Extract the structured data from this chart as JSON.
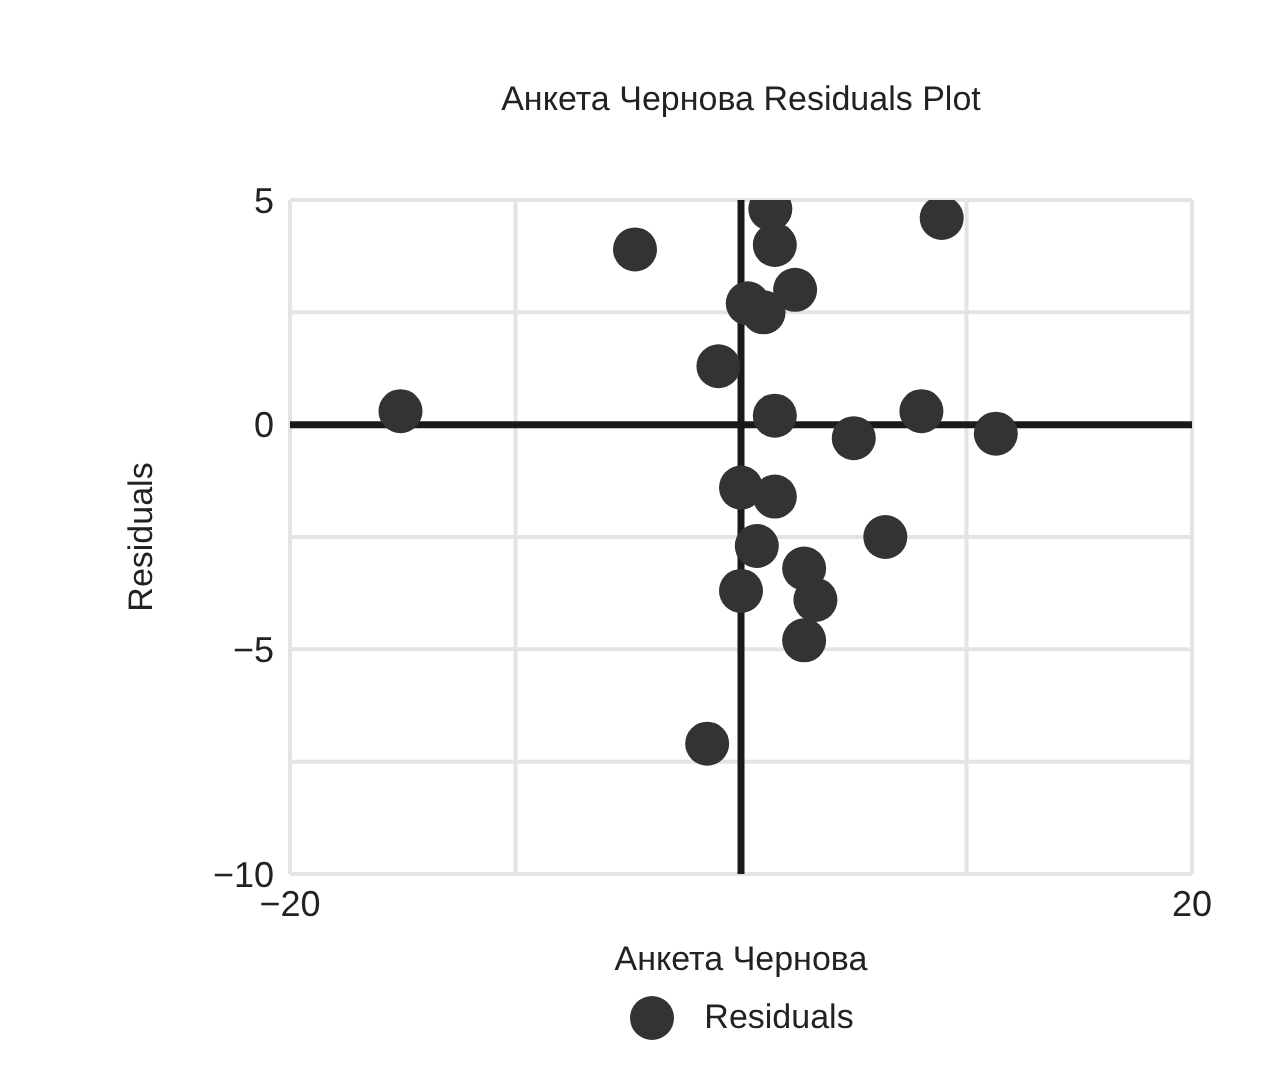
{
  "chart_data": {
    "type": "scatter",
    "title": "Анкета Чернова Residuals Plot",
    "xlabel": "Анкета Чернова",
    "ylabel": "Residuals",
    "series": [
      {
        "name": "Residuals",
        "color": "#333333",
        "x": [
          1.3,
          1.5,
          8.9,
          -4.7,
          2.4,
          0.3,
          1.0,
          -1.0,
          -15.1,
          1.5,
          5.0,
          8.0,
          11.3,
          0,
          1.5,
          6.4,
          0.7,
          2.8,
          3.3,
          0,
          2.8,
          -1.5
        ],
        "values": [
          4.8,
          4.0,
          4.6,
          3.9,
          3.0,
          2.7,
          2.5,
          1.3,
          0.3,
          0.2,
          -0.3,
          0.3,
          -0.2,
          -1.4,
          -1.6,
          -2.5,
          -2.7,
          -3.2,
          -3.9,
          -3.7,
          -4.8,
          -7.1
        ]
      }
    ],
    "xlim": [
      -20,
      20
    ],
    "xticks": [
      -20,
      {
        "value": -10,
        "label": null
      },
      {
        "value": 0,
        "label": null
      },
      {
        "value": 10,
        "label": null
      },
      20
    ],
    "ylim": [
      -10,
      5
    ],
    "yticks": [
      -10,
      {
        "value": -7.5,
        "label": null
      },
      -5,
      {
        "value": -2.5,
        "label": null
      },
      0,
      {
        "value": 2.5,
        "label": null
      },
      5
    ],
    "grid": true,
    "legend": "bottom",
    "marker": "circle"
  }
}
